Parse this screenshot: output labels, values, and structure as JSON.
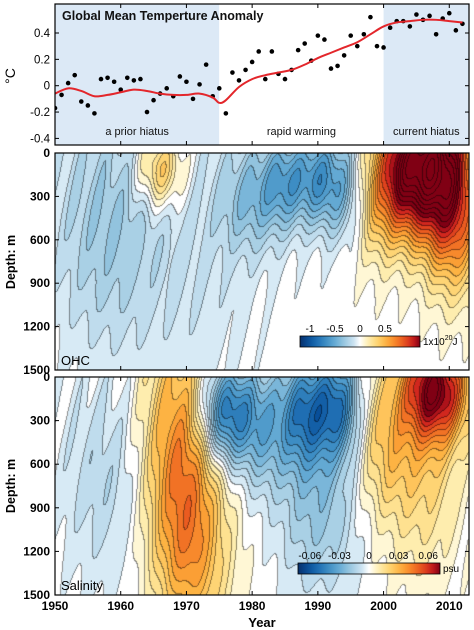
{
  "figure": {
    "xlabel": "Year",
    "x_ticks": [
      1950,
      1960,
      1970,
      1980,
      1990,
      2000,
      2010
    ],
    "xlim": [
      1950,
      2013
    ]
  },
  "chart_data": [
    {
      "type": "line",
      "title": "Global Mean Temperture Anomaly",
      "ylabel": "°C",
      "ylim": [
        -0.45,
        0.62
      ],
      "y_ticks": [
        -0.4,
        -0.2,
        0,
        0.2,
        0.4
      ],
      "xlim": [
        1950,
        2013
      ],
      "shaded_periods": [
        {
          "start": 1950,
          "end": 1975,
          "label": "a prior hiatus",
          "color": "#dce9f6"
        },
        {
          "start": 1975,
          "end": 2000,
          "label": "rapid warming",
          "color": "#ffffff"
        },
        {
          "start": 2000,
          "end": 2013,
          "label": "current hiatus",
          "color": "#dce9f6"
        }
      ],
      "series": [
        {
          "kind": "points",
          "color": "#000000",
          "x": [
            1950,
            1951,
            1952,
            1953,
            1954,
            1955,
            1956,
            1957,
            1958,
            1959,
            1960,
            1961,
            1962,
            1963,
            1964,
            1965,
            1966,
            1967,
            1968,
            1969,
            1970,
            1971,
            1972,
            1973,
            1974,
            1975,
            1976,
            1977,
            1978,
            1979,
            1980,
            1981,
            1982,
            1983,
            1984,
            1985,
            1986,
            1987,
            1988,
            1989,
            1990,
            1991,
            1992,
            1993,
            1994,
            1995,
            1996,
            1997,
            1998,
            1999,
            2000,
            2001,
            2002,
            2003,
            2004,
            2005,
            2006,
            2007,
            2008,
            2009,
            2010,
            2011,
            2012
          ],
          "y": [
            -0.17,
            -0.07,
            0.02,
            0.08,
            -0.12,
            -0.15,
            -0.21,
            0.05,
            0.06,
            0.03,
            -0.03,
            0.06,
            0.04,
            0.05,
            -0.2,
            -0.11,
            -0.06,
            -0.02,
            -0.08,
            0.07,
            0.03,
            -0.1,
            0.01,
            0.16,
            -0.08,
            -0.02,
            -0.21,
            0.1,
            0.04,
            0.12,
            0.18,
            0.26,
            0.05,
            0.26,
            0.09,
            0.05,
            0.12,
            0.27,
            0.32,
            0.19,
            0.38,
            0.35,
            0.13,
            0.15,
            0.23,
            0.38,
            0.3,
            0.39,
            0.52,
            0.3,
            0.29,
            0.44,
            0.49,
            0.49,
            0.45,
            0.54,
            0.5,
            0.53,
            0.39,
            0.51,
            0.55,
            0.42,
            0.47
          ]
        },
        {
          "kind": "line",
          "color": "#e3262b",
          "x": [
            1950,
            1952,
            1954,
            1956,
            1958,
            1960,
            1962,
            1964,
            1966,
            1968,
            1970,
            1972,
            1974,
            1975,
            1976,
            1978,
            1980,
            1982,
            1984,
            1986,
            1988,
            1990,
            1992,
            1994,
            1996,
            1998,
            2000,
            2002,
            2004,
            2006,
            2008,
            2010,
            2012
          ],
          "y": [
            -0.06,
            -0.02,
            -0.04,
            -0.08,
            -0.07,
            -0.05,
            -0.03,
            -0.04,
            -0.06,
            -0.07,
            -0.07,
            -0.06,
            -0.09,
            -0.13,
            -0.11,
            -0.01,
            0.05,
            0.08,
            0.1,
            0.12,
            0.16,
            0.21,
            0.25,
            0.29,
            0.33,
            0.39,
            0.45,
            0.48,
            0.49,
            0.5,
            0.5,
            0.49,
            0.48
          ]
        }
      ]
    },
    {
      "type": "heatmap",
      "title": "OHC",
      "ylabel": "Depth: m",
      "y_ticks": [
        0,
        300,
        600,
        900,
        1200,
        1500
      ],
      "ylim": [
        1500,
        0
      ],
      "xlim": [
        1950,
        2013
      ],
      "colorbar": {
        "ticks": [
          "-1",
          "-0.5",
          "0",
          "0.5"
        ],
        "unit_label": "1x10",
        "unit_exp": "20",
        "unit_suffix": "J",
        "range": [
          -1.2,
          1.2
        ]
      },
      "features": [
        {
          "year": 1966,
          "depth": 120,
          "value": 0.5,
          "sx": 2.5,
          "sz": 180
        },
        {
          "year": 1985,
          "depth": 200,
          "value": -0.45,
          "sx": 2.5,
          "sz": 220
        },
        {
          "year": 1980,
          "depth": 320,
          "value": -0.35,
          "sx": 3.5,
          "sz": 260
        },
        {
          "year": 1990,
          "depth": 180,
          "value": -0.5,
          "sx": 2.5,
          "sz": 220
        },
        {
          "year": 1994,
          "depth": 250,
          "value": -0.4,
          "sx": 2.5,
          "sz": 260
        },
        {
          "year": 1999,
          "depth": 350,
          "value": 0.35,
          "sx": 3,
          "sz": 300
        },
        {
          "year": 2003,
          "depth": 120,
          "value": 0.9,
          "sx": 3,
          "sz": 300
        },
        {
          "year": 2008,
          "depth": 60,
          "value": 1.25,
          "sx": 3.5,
          "sz": 380
        },
        {
          "year": 2011,
          "depth": 450,
          "value": 0.6,
          "sx": 3,
          "sz": 380
        },
        {
          "year": 1958,
          "depth": 500,
          "value": -0.3,
          "sx": 6,
          "sz": 600
        },
        {
          "year": 1972,
          "depth": 700,
          "value": -0.12,
          "sx": 6,
          "sz": 700
        }
      ]
    },
    {
      "type": "heatmap",
      "title": "Salinity",
      "ylabel": "Depth: m",
      "y_ticks": [
        0,
        300,
        600,
        900,
        1200,
        1500
      ],
      "ylim": [
        1500,
        0
      ],
      "xlim": [
        1950,
        2013
      ],
      "colorbar": {
        "ticks": [
          "-0.06",
          "-0.03",
          "0",
          "0.03",
          "0.06"
        ],
        "unit_label": "psu",
        "range": [
          -0.072,
          0.072
        ]
      },
      "features": [
        {
          "year": 1969,
          "depth": 500,
          "value": 0.04,
          "sx": 4,
          "sz": 600
        },
        {
          "year": 1971,
          "depth": 1250,
          "value": 0.025,
          "sx": 4,
          "sz": 450
        },
        {
          "year": 1976,
          "depth": 250,
          "value": -0.05,
          "sx": 3,
          "sz": 240
        },
        {
          "year": 1982,
          "depth": 350,
          "value": -0.025,
          "sx": 3,
          "sz": 300
        },
        {
          "year": 1988,
          "depth": 250,
          "value": -0.04,
          "sx": 2.5,
          "sz": 260
        },
        {
          "year": 1993,
          "depth": 200,
          "value": -0.045,
          "sx": 2.5,
          "sz": 260
        },
        {
          "year": 1990,
          "depth": 900,
          "value": -0.02,
          "sx": 4,
          "sz": 400
        },
        {
          "year": 2000,
          "depth": 450,
          "value": 0.02,
          "sx": 3,
          "sz": 350
        },
        {
          "year": 2008,
          "depth": 80,
          "value": 0.07,
          "sx": 3.5,
          "sz": 250
        },
        {
          "year": 2006,
          "depth": 600,
          "value": 0.02,
          "sx": 4,
          "sz": 500
        },
        {
          "year": 1958,
          "depth": 700,
          "value": -0.012,
          "sx": 5,
          "sz": 500
        }
      ]
    }
  ]
}
